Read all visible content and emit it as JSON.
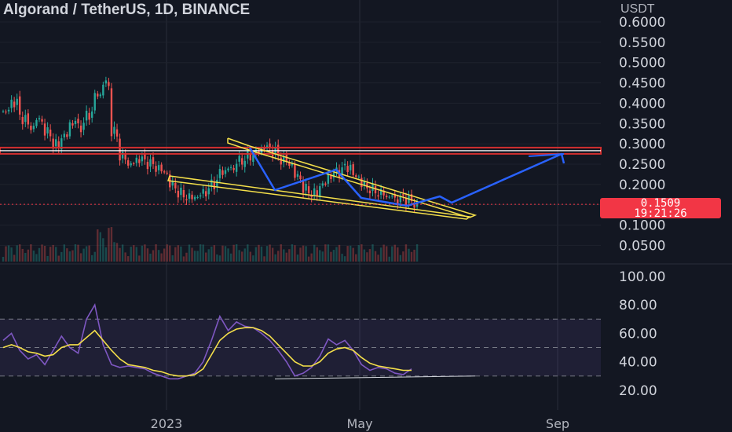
{
  "header": {
    "title": "Algorand / TetherUS, 1D, BINANCE",
    "currency": "USDT"
  },
  "price_badge": {
    "price": "0.1509",
    "countdown": "19:21:26"
  },
  "colors": {
    "background": "#131722",
    "up_candle": "#26a69a",
    "down_candle": "#ef5350",
    "resistance": "#d32f2f",
    "wedge": "#f5e04a",
    "projection": "#2962ff",
    "rsi": "#7e57c2",
    "rsi_ma": "#f5e04a",
    "current_price_line": "#f23645"
  },
  "chart_data": [
    {
      "type": "candlestick",
      "title": "Algorand / TetherUS, 1D, BINANCE",
      "x_ticks": [
        "2023",
        "May",
        "Sep"
      ],
      "y_ticks": [
        0.6,
        0.55,
        0.5,
        0.45,
        0.4,
        0.35,
        0.3,
        0.25,
        0.2,
        0.15,
        0.1,
        0.05
      ],
      "y_tick_labels": [
        "0.6000",
        "0.5500",
        "0.5000",
        "0.4500",
        "0.4000",
        "0.3500",
        "0.3000",
        "0.2500",
        "0.2000",
        "",
        "0.1000",
        "0.0500"
      ],
      "ylim": [
        0.0,
        0.62
      ],
      "current_price": 0.1509,
      "close_series_approx": [
        0.38,
        0.4,
        0.36,
        0.34,
        0.36,
        0.33,
        0.3,
        0.32,
        0.35,
        0.34,
        0.37,
        0.42,
        0.45,
        0.33,
        0.27,
        0.25,
        0.26,
        0.25,
        0.24,
        0.23,
        0.2,
        0.18,
        0.17,
        0.17,
        0.18,
        0.2,
        0.23,
        0.24,
        0.26,
        0.27,
        0.28,
        0.29,
        0.28,
        0.26,
        0.25,
        0.22,
        0.19,
        0.18,
        0.2,
        0.22,
        0.23,
        0.24,
        0.22,
        0.2,
        0.19,
        0.18,
        0.17,
        0.16,
        0.16,
        0.15
      ],
      "horizontal_resistance": 0.283,
      "annotations": [
        "falling wedge",
        "projected breakout to ~0.27"
      ]
    },
    {
      "type": "line",
      "name_hidden": true,
      "y_ticks": [
        100,
        80,
        60,
        40,
        20
      ],
      "y_tick_labels": [
        "100.00",
        "80.00",
        "60.00",
        "40.00",
        "20.00"
      ],
      "ylim": [
        12,
        105
      ],
      "band": [
        30,
        70
      ],
      "rsi_approx": [
        55,
        60,
        48,
        42,
        45,
        38,
        48,
        58,
        50,
        46,
        70,
        80,
        52,
        38,
        36,
        37,
        36,
        35,
        32,
        30,
        28,
        28,
        30,
        32,
        40,
        55,
        72,
        62,
        68,
        65,
        64,
        60,
        55,
        48,
        40,
        30,
        32,
        36,
        44,
        56,
        52,
        55,
        48,
        38,
        34,
        36,
        35,
        32,
        31,
        35
      ],
      "rsi_ma_approx": [
        50,
        52,
        50,
        47,
        46,
        44,
        45,
        50,
        52,
        52,
        57,
        62,
        55,
        48,
        42,
        38,
        37,
        36,
        34,
        33,
        31,
        30,
        30,
        31,
        35,
        45,
        55,
        60,
        63,
        64,
        64,
        62,
        58,
        52,
        46,
        40,
        37,
        37,
        40,
        46,
        49,
        50,
        48,
        43,
        39,
        37,
        36,
        35,
        34,
        34
      ]
    }
  ]
}
